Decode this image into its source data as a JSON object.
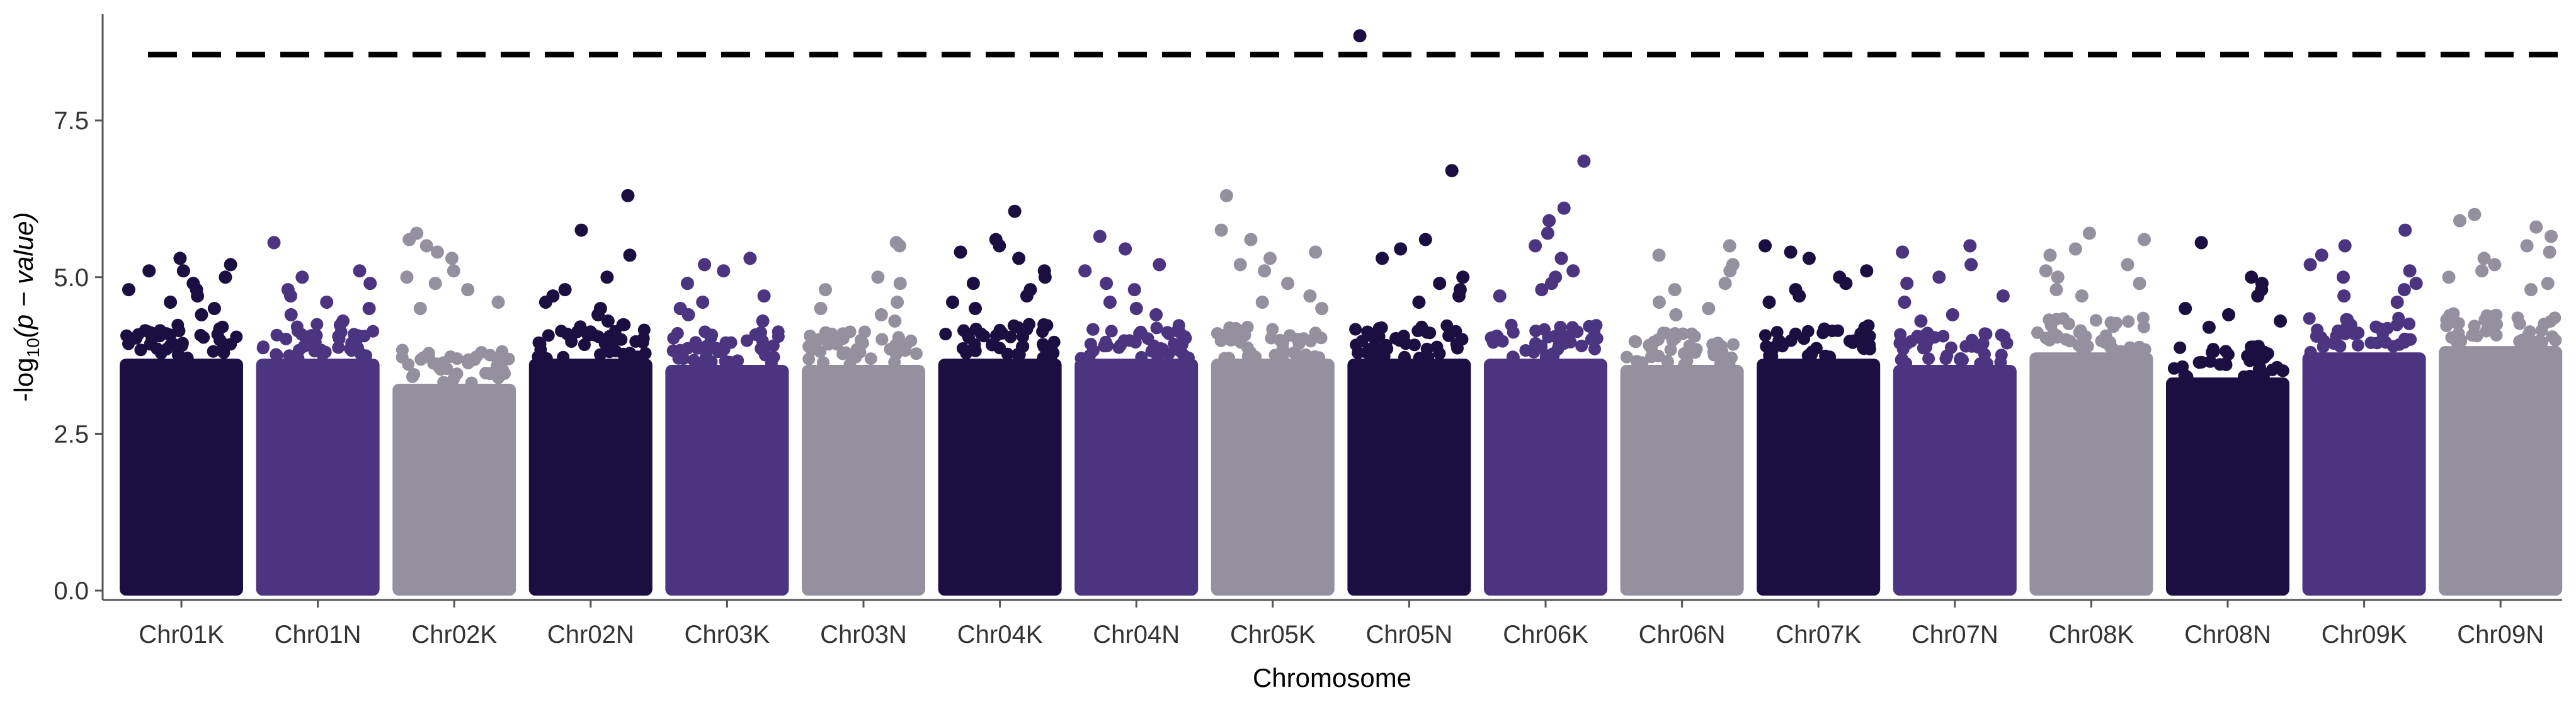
{
  "chart_data": {
    "type": "scatter",
    "subtype": "manhattan",
    "xlabel": "Chromosome",
    "ylabel_prefix": "-log",
    "ylabel_sub": "10",
    "ylabel_suffix": "(p − value)",
    "ylim": [
      -0.15,
      9.2
    ],
    "yticks": [
      0.0,
      2.5,
      5.0,
      7.5
    ],
    "ytick_labels": [
      "0.0",
      "2.5",
      "5.0",
      "7.5"
    ],
    "threshold": 8.55,
    "grid": false,
    "legend": "none",
    "categories": [
      "Chr01K",
      "Chr01N",
      "Chr02K",
      "Chr02N",
      "Chr03K",
      "Chr03N",
      "Chr04K",
      "Chr04N",
      "Chr05K",
      "Chr05N",
      "Chr06K",
      "Chr06N",
      "Chr07K",
      "Chr07N",
      "Chr08K",
      "Chr08N",
      "Chr09K",
      "Chr09N"
    ],
    "palette": [
      "#1b0f42",
      "#4b3480",
      "#94909e"
    ],
    "colors": [
      "#1b0f42",
      "#4b3480",
      "#94909e",
      "#1b0f42",
      "#4b3480",
      "#94909e",
      "#1b0f42",
      "#4b3480",
      "#94909e",
      "#1b0f42",
      "#4b3480",
      "#94909e",
      "#1b0f42",
      "#4b3480",
      "#94909e",
      "#1b0f42",
      "#4b3480",
      "#94909e"
    ],
    "base_level": [
      3.7,
      3.7,
      3.3,
      3.7,
      3.6,
      3.6,
      3.7,
      3.7,
      3.7,
      3.7,
      3.7,
      3.6,
      3.7,
      3.6,
      3.8,
      3.4,
      3.8,
      3.9
    ],
    "top_hits": [
      [
        5.3,
        5.2,
        5.1,
        5.1,
        5.0,
        4.9,
        4.8,
        4.8,
        4.7,
        4.6,
        4.5,
        4.4
      ],
      [
        5.55,
        5.1,
        5.0,
        4.9,
        4.8,
        4.7,
        4.6,
        4.5,
        4.4,
        4.3
      ],
      [
        5.7,
        5.6,
        5.5,
        5.4,
        5.3,
        5.1,
        5.0,
        4.9,
        4.8,
        4.6,
        4.5
      ],
      [
        6.3,
        5.75,
        5.35,
        5.0,
        4.8,
        4.7,
        4.6,
        4.5,
        4.4,
        4.3
      ],
      [
        5.3,
        5.2,
        5.1,
        4.9,
        4.7,
        4.6,
        4.5,
        4.4,
        4.3
      ],
      [
        5.55,
        5.5,
        5.0,
        4.9,
        4.8,
        4.6,
        4.5,
        4.4,
        4.3
      ],
      [
        6.05,
        5.6,
        5.5,
        5.4,
        5.3,
        5.1,
        5.0,
        4.9,
        4.8,
        4.7,
        4.6,
        4.5
      ],
      [
        5.65,
        5.45,
        5.2,
        5.1,
        4.9,
        4.8,
        4.6,
        4.5,
        4.4
      ],
      [
        6.3,
        5.75,
        5.6,
        5.4,
        5.3,
        5.2,
        5.1,
        4.9,
        4.7,
        4.6,
        4.5
      ],
      [
        8.85,
        6.7,
        5.6,
        5.45,
        5.3,
        5.0,
        4.9,
        4.8,
        4.7,
        4.6
      ],
      [
        6.85,
        6.1,
        5.9,
        5.7,
        5.5,
        5.3,
        5.1,
        5.0,
        4.9,
        4.8,
        4.7
      ],
      [
        5.5,
        5.35,
        5.2,
        5.1,
        4.9,
        4.8,
        4.6,
        4.5,
        4.4
      ],
      [
        5.5,
        5.4,
        5.3,
        5.1,
        5.0,
        4.9,
        4.8,
        4.7,
        4.6
      ],
      [
        5.5,
        5.4,
        5.2,
        5.0,
        4.9,
        4.7,
        4.6,
        4.4,
        4.3
      ],
      [
        5.7,
        5.6,
        5.45,
        5.35,
        5.2,
        5.1,
        5.0,
        4.9,
        4.8,
        4.7
      ],
      [
        5.55,
        5.0,
        4.9,
        4.8,
        4.7,
        4.5,
        4.4,
        4.3,
        4.2
      ],
      [
        5.75,
        5.5,
        5.35,
        5.2,
        5.1,
        5.0,
        4.9,
        4.8,
        4.7,
        4.6
      ],
      [
        6.0,
        5.9,
        5.8,
        5.65,
        5.5,
        5.4,
        5.3,
        5.2,
        5.1,
        5.0,
        4.9,
        4.8
      ]
    ]
  }
}
